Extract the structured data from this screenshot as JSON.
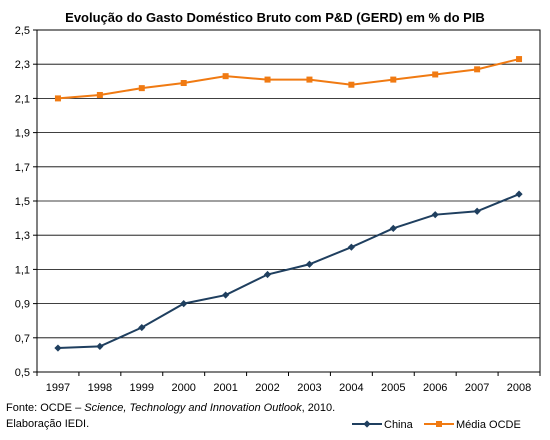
{
  "chart_data": {
    "type": "line",
    "title": "Evolução do Gasto Doméstico Bruto com P&D (GERD) em % do PIB",
    "xlabel": "",
    "ylabel": "",
    "categories": [
      "1997",
      "1998",
      "1999",
      "2000",
      "2001",
      "2002",
      "2003",
      "2004",
      "2005",
      "2006",
      "2007",
      "2008"
    ],
    "ylim": [
      0.5,
      2.5
    ],
    "yticks": [
      "0,5",
      "0,7",
      "0,9",
      "1,1",
      "1,3",
      "1,5",
      "1,7",
      "1,9",
      "2,1",
      "2,3",
      "2,5"
    ],
    "ytick_values": [
      0.5,
      0.7,
      0.9,
      1.1,
      1.3,
      1.5,
      1.7,
      1.9,
      2.1,
      2.3,
      2.5
    ],
    "grid": "horizontal",
    "legend_position": "bottom-right",
    "series": [
      {
        "name": "China",
        "color": "#1f3f5f",
        "marker": "diamond",
        "values": [
          0.64,
          0.65,
          0.76,
          0.9,
          0.95,
          1.07,
          1.13,
          1.23,
          1.34,
          1.42,
          1.44,
          1.54
        ]
      },
      {
        "name": "Média OCDE",
        "color": "#f07a12",
        "marker": "square",
        "values": [
          2.1,
          2.12,
          2.16,
          2.19,
          2.23,
          2.21,
          2.21,
          2.18,
          2.21,
          2.24,
          2.27,
          2.33
        ]
      }
    ]
  },
  "footnote": {
    "source_prefix": "Fonte: OCDE – ",
    "source_italic": "Science, Technology and Innovation Outlook",
    "source_suffix": ", 2010.",
    "elaboration": "Elaboração IEDI."
  }
}
